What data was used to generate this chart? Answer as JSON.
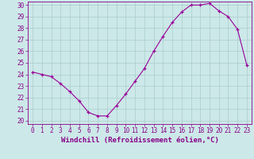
{
  "x": [
    0,
    1,
    2,
    3,
    4,
    5,
    6,
    7,
    8,
    9,
    10,
    11,
    12,
    13,
    14,
    15,
    16,
    17,
    18,
    19,
    20,
    21,
    22,
    23
  ],
  "y": [
    24.2,
    24.0,
    23.8,
    23.2,
    22.5,
    21.7,
    20.7,
    20.4,
    20.4,
    21.3,
    22.3,
    23.4,
    24.5,
    26.0,
    27.3,
    28.5,
    29.4,
    30.0,
    30.0,
    30.15,
    29.5,
    29.0,
    27.9,
    24.8
  ],
  "line_color": "#990099",
  "marker": "+",
  "background_color": "#cce8e8",
  "grid_color": "#aacccc",
  "xlabel": "Windchill (Refroidissement éolien,°C)",
  "ylabel": "",
  "ylim": [
    20,
    30
  ],
  "xlim": [
    -0.5,
    23.5
  ],
  "yticks": [
    20,
    21,
    22,
    23,
    24,
    25,
    26,
    27,
    28,
    29,
    30
  ],
  "xticks": [
    0,
    1,
    2,
    3,
    4,
    5,
    6,
    7,
    8,
    9,
    10,
    11,
    12,
    13,
    14,
    15,
    16,
    17,
    18,
    19,
    20,
    21,
    22,
    23
  ],
  "tick_label_fontsize": 5.5,
  "xlabel_fontsize": 6.5,
  "axis_color": "#880088",
  "spine_color": "#880088"
}
